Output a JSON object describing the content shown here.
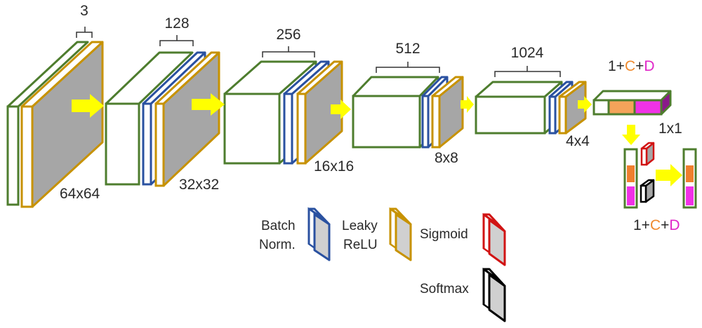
{
  "colors": {
    "conv": "#4e7d2e",
    "batchnorm": "#2a51a0",
    "leakyrelu": "#c79200",
    "sigmoid": "#d11414",
    "softmax": "#000000",
    "activation_fill": "#a6a6a6",
    "arrow": "#ffff00",
    "class_bin": "#f4a35a",
    "domain_bin": "#f032e6"
  },
  "blocks": [
    {
      "channels": "3",
      "size": "64x64"
    },
    {
      "channels": "128",
      "size": "32x32"
    },
    {
      "channels": "256",
      "size": "16x16"
    },
    {
      "channels": "512",
      "size": "8x8"
    },
    {
      "channels": "1024",
      "size": "4x4"
    }
  ],
  "output": {
    "label_top": {
      "one_plus": "1+",
      "c": "C",
      "plus": "+",
      "d": "D"
    },
    "size": "1x1",
    "label_bottom": {
      "one_plus": "1+",
      "c": "C",
      "plus": "+",
      "d": "D"
    }
  },
  "legend": {
    "batchnorm": [
      "Batch",
      "Norm."
    ],
    "leakyrelu": [
      "Leaky",
      "ReLU"
    ],
    "sigmoid": "Sigmoid",
    "softmax": "Softmax"
  }
}
